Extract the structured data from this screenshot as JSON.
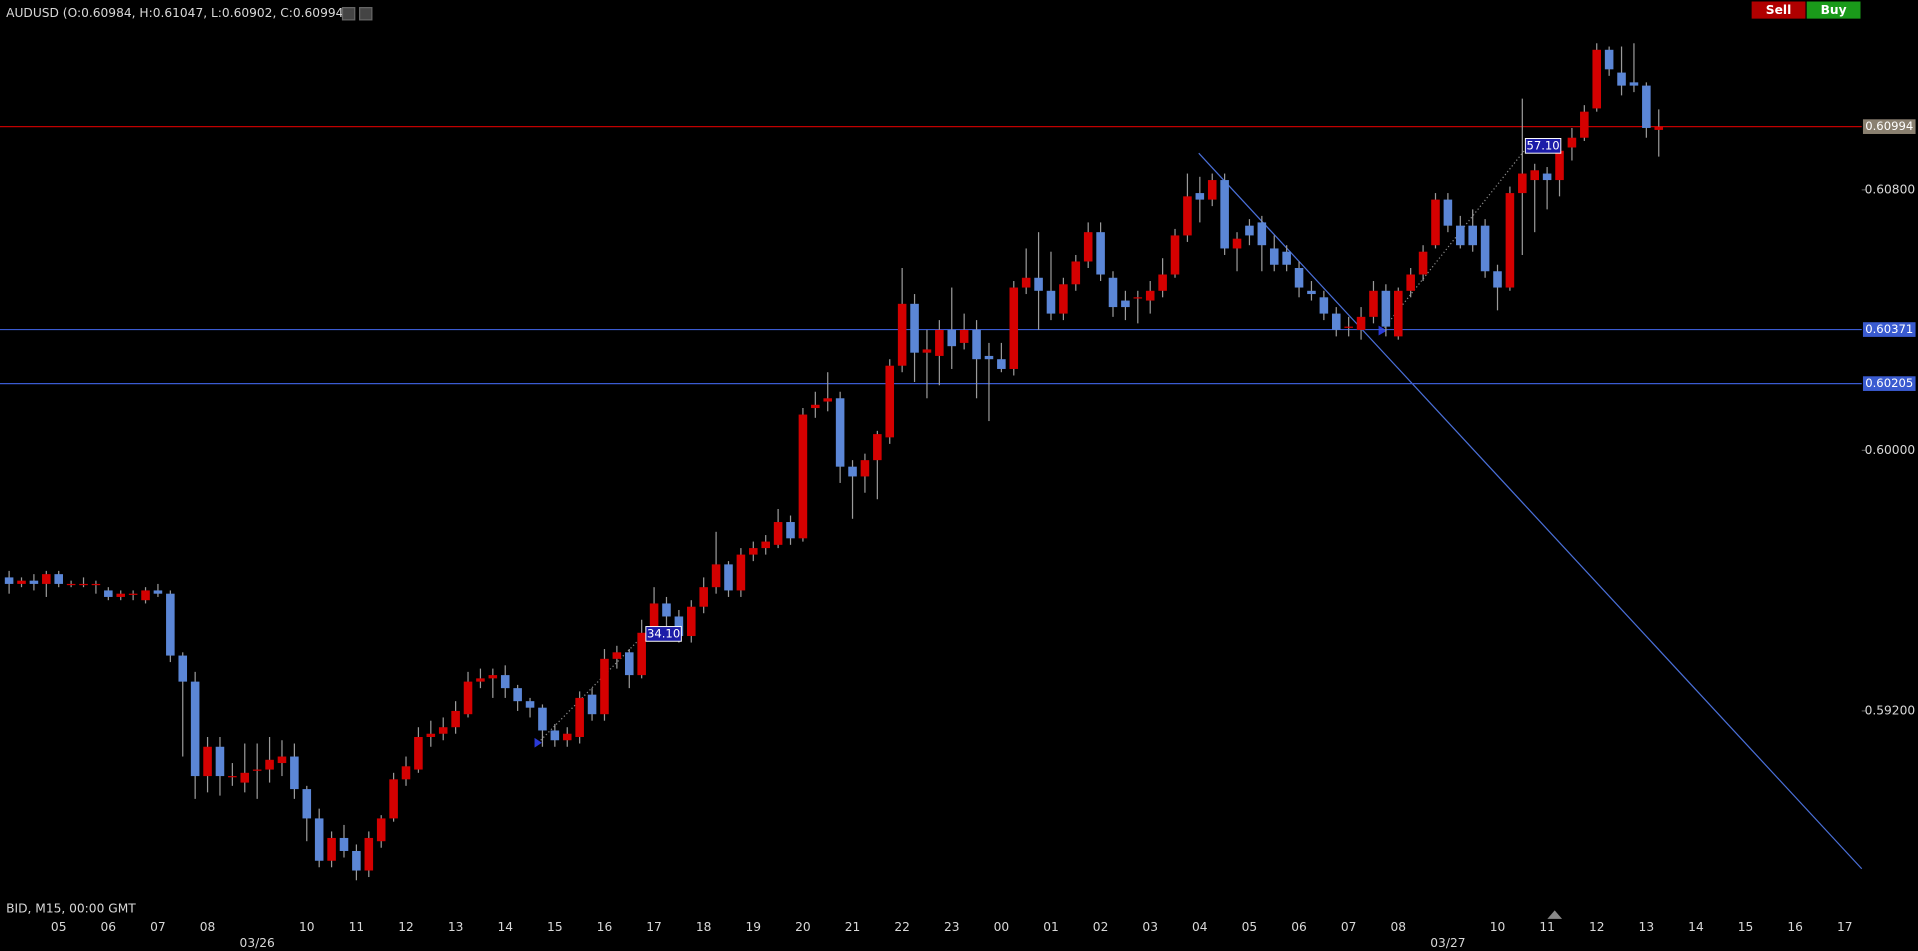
{
  "chart_data": {
    "type": "candlestick",
    "header": "AUDUSD (O:0.60984, H:0.61047, L:0.60902, C:0.60994)",
    "footer_label": "BID, M15, 00:00 GMT",
    "buttons": {
      "sell": "Sell",
      "buy": "Buy"
    },
    "up_color": "#d40000",
    "down_color": "#5b86d6",
    "ylim": [
      0.58614,
      0.61382
    ],
    "yticks": [
      {
        "value": 0.608,
        "label": "0.60800"
      },
      {
        "value": 0.6,
        "label": "0.60000"
      },
      {
        "value": 0.592,
        "label": "0.59200"
      }
    ],
    "price_lines": [
      {
        "value": 0.60994,
        "color": "#c00000"
      },
      {
        "value": 0.60371,
        "color": "#3a5bd0"
      },
      {
        "value": 0.60205,
        "color": "#3a5bd0"
      }
    ],
    "annotations": [
      {
        "label": "34.10"
      },
      {
        "label": "57.10"
      }
    ],
    "xtick_labels": [
      "05",
      "06",
      "07",
      "08",
      null,
      "10",
      "11",
      "12",
      "13",
      "14",
      "15",
      "16",
      "17",
      "18",
      "19",
      "20",
      "21",
      "22",
      "23",
      "00",
      "01",
      "02",
      "03",
      "04",
      "05",
      "06",
      "07",
      "08",
      null,
      "10",
      "11",
      "12",
      "13",
      "14",
      "15",
      "16",
      "17"
    ],
    "date_labels": [
      null,
      null,
      null,
      null,
      "03/26",
      null,
      null,
      null,
      null,
      null,
      null,
      null,
      null,
      null,
      null,
      null,
      null,
      null,
      null,
      null,
      null,
      null,
      null,
      null,
      null,
      null,
      null,
      null,
      "03/27",
      null,
      null,
      null,
      null,
      null,
      null,
      null,
      null
    ],
    "open": [
      0.5961,
      0.5959,
      0.596,
      0.5959,
      0.5962,
      0.5959,
      0.5959,
      0.5959,
      0.5957,
      0.5955,
      0.5956,
      0.5954,
      0.5957,
      0.5956,
      0.5937,
      0.5929,
      0.59,
      0.5909,
      0.59,
      0.5898,
      0.5902,
      0.5902,
      0.5904,
      0.5906,
      0.5896,
      0.5887,
      0.5874,
      0.5881,
      0.5877,
      0.5871,
      0.588,
      0.5887,
      0.5899,
      0.5902,
      0.5912,
      0.5913,
      0.5915,
      0.5919,
      0.5929,
      0.593,
      0.5931,
      0.5927,
      0.5923,
      0.5921,
      0.5914,
      0.5911,
      0.5912,
      0.5925,
      0.5919,
      0.5936,
      0.5938,
      0.5931,
      0.5944,
      0.5953,
      0.5949,
      0.5943,
      0.5952,
      0.5958,
      0.5965,
      0.5957,
      0.5968,
      0.597,
      0.5971,
      0.5978,
      0.5973,
      0.6013,
      0.6015,
      0.6016,
      0.5995,
      0.5992,
      0.5997,
      0.6004,
      0.6026,
      0.6045,
      0.603,
      0.6029,
      0.6037,
      0.6033,
      0.6037,
      0.6029,
      0.6028,
      0.6025,
      0.605,
      0.6053,
      0.6049,
      0.6042,
      0.6051,
      0.6058,
      0.6067,
      0.6053,
      0.6046,
      0.6047,
      0.6046,
      0.6049,
      0.6054,
      0.6066,
      0.6079,
      0.6077,
      0.6083,
      0.6062,
      0.6069,
      0.607,
      0.6062,
      0.6061,
      0.6056,
      0.6049,
      0.6047,
      0.6042,
      0.6038,
      0.6037,
      0.6041,
      0.6049,
      0.6035,
      0.6049,
      0.6054,
      0.6063,
      0.6077,
      0.6069,
      0.6069,
      0.6069,
      0.6055,
      0.605,
      0.6079,
      0.6083,
      0.6085,
      0.6083,
      0.6093,
      0.6096,
      0.6105,
      0.6123,
      0.6116,
      0.6113,
      0.6112,
      0.60984
    ],
    "high": [
      0.5963,
      0.5961,
      0.5962,
      0.5963,
      0.5963,
      0.596,
      0.5961,
      0.596,
      0.5958,
      0.5957,
      0.5957,
      0.5958,
      0.5959,
      0.5957,
      0.5938,
      0.5932,
      0.5912,
      0.5912,
      0.5904,
      0.591,
      0.591,
      0.5912,
      0.5911,
      0.591,
      0.5897,
      0.589,
      0.5883,
      0.5885,
      0.5879,
      0.5883,
      0.5888,
      0.5901,
      0.5906,
      0.5915,
      0.5917,
      0.5918,
      0.5923,
      0.5932,
      0.5933,
      0.5933,
      0.5934,
      0.5928,
      0.5924,
      0.5922,
      0.5916,
      0.5915,
      0.5926,
      0.5927,
      0.5939,
      0.594,
      0.5939,
      0.5948,
      0.5958,
      0.5955,
      0.5951,
      0.5954,
      0.5961,
      0.5975,
      0.5966,
      0.597,
      0.5972,
      0.5974,
      0.5982,
      0.598,
      0.6013,
      0.6018,
      0.6024,
      0.6018,
      0.5997,
      0.5999,
      0.6006,
      0.6028,
      0.6056,
      0.6048,
      0.6037,
      0.604,
      0.605,
      0.6042,
      0.604,
      0.6033,
      0.6033,
      0.6052,
      0.6062,
      0.6067,
      0.6061,
      0.6053,
      0.606,
      0.607,
      0.607,
      0.6055,
      0.6049,
      0.6049,
      0.6052,
      0.6059,
      0.6068,
      0.6085,
      0.6084,
      0.6085,
      0.6085,
      0.6067,
      0.6071,
      0.6072,
      0.6066,
      0.6063,
      0.6058,
      0.6052,
      0.6049,
      0.6044,
      0.6041,
      0.6044,
      0.6052,
      0.6051,
      0.605,
      0.6056,
      0.6063,
      0.6079,
      0.6079,
      0.6072,
      0.6074,
      0.6071,
      0.6057,
      0.6081,
      0.6108,
      0.6088,
      0.6087,
      0.6094,
      0.6099,
      0.6106,
      0.6125,
      0.6124,
      0.6124,
      0.6125,
      0.6113,
      0.61047
    ],
    "low": [
      0.5956,
      0.5958,
      0.5957,
      0.5955,
      0.5958,
      0.5958,
      0.5958,
      0.5956,
      0.5954,
      0.5954,
      0.5954,
      0.5953,
      0.5955,
      0.5935,
      0.5906,
      0.5893,
      0.5895,
      0.5894,
      0.5897,
      0.5895,
      0.5893,
      0.5898,
      0.59,
      0.5893,
      0.588,
      0.5872,
      0.5872,
      0.5875,
      0.5868,
      0.5869,
      0.5878,
      0.5886,
      0.5897,
      0.5901,
      0.5909,
      0.5911,
      0.5913,
      0.5918,
      0.5927,
      0.5924,
      0.5924,
      0.592,
      0.5918,
      0.5909,
      0.5909,
      0.5909,
      0.591,
      0.5917,
      0.5917,
      0.5933,
      0.5927,
      0.593,
      0.5942,
      0.5946,
      0.5941,
      0.5941,
      0.595,
      0.5956,
      0.5955,
      0.5955,
      0.5966,
      0.5968,
      0.597,
      0.5971,
      0.5972,
      0.601,
      0.6012,
      0.599,
      0.5979,
      0.5987,
      0.5985,
      0.6002,
      0.6024,
      0.6021,
      0.6016,
      0.602,
      0.6025,
      0.6031,
      0.6016,
      0.6009,
      0.6024,
      0.6023,
      0.6048,
      0.6037,
      0.604,
      0.604,
      0.6049,
      0.6056,
      0.6052,
      0.6041,
      0.604,
      0.6039,
      0.6042,
      0.6047,
      0.6053,
      0.6064,
      0.607,
      0.6075,
      0.606,
      0.6055,
      0.6063,
      0.6055,
      0.6055,
      0.6055,
      0.6047,
      0.6046,
      0.604,
      0.6035,
      0.6035,
      0.6034,
      0.6039,
      0.6035,
      0.6034,
      0.6047,
      0.6052,
      0.6062,
      0.6067,
      0.6062,
      0.6061,
      0.6053,
      0.6043,
      0.6049,
      0.606,
      0.6067,
      0.6074,
      0.6078,
      0.6089,
      0.6095,
      0.6104,
      0.6115,
      0.6109,
      0.611,
      0.6096,
      0.60902
    ],
    "close": [
      0.5959,
      0.596,
      0.5959,
      0.5962,
      0.5959,
      0.5959,
      0.5959,
      0.5959,
      0.5955,
      0.5956,
      0.5956,
      0.5957,
      0.5956,
      0.5937,
      0.5929,
      0.59,
      0.5909,
      0.59,
      0.59,
      0.5901,
      0.5902,
      0.5905,
      0.5906,
      0.5896,
      0.5887,
      0.5874,
      0.5881,
      0.5877,
      0.5871,
      0.5881,
      0.5887,
      0.5899,
      0.5903,
      0.5912,
      0.5913,
      0.5915,
      0.592,
      0.5929,
      0.593,
      0.5931,
      0.5927,
      0.5923,
      0.5921,
      0.5914,
      0.5911,
      0.5913,
      0.5924,
      0.5919,
      0.5936,
      0.5938,
      0.5931,
      0.5944,
      0.5953,
      0.5949,
      0.5943,
      0.5952,
      0.5958,
      0.5965,
      0.5957,
      0.5968,
      0.597,
      0.5972,
      0.5978,
      0.5973,
      0.6011,
      0.6014,
      0.6016,
      0.5995,
      0.5992,
      0.5997,
      0.6005,
      0.6026,
      0.6045,
      0.603,
      0.6031,
      0.6037,
      0.6032,
      0.6037,
      0.6028,
      0.6028,
      0.6025,
      0.605,
      0.6053,
      0.6049,
      0.6042,
      0.6051,
      0.6058,
      0.6067,
      0.6054,
      0.6044,
      0.6044,
      0.6047,
      0.6049,
      0.6054,
      0.6066,
      0.6078,
      0.6077,
      0.6083,
      0.6062,
      0.6065,
      0.6066,
      0.6063,
      0.6057,
      0.6057,
      0.605,
      0.6048,
      0.6042,
      0.6037,
      0.6038,
      0.6041,
      0.6049,
      0.6038,
      0.6049,
      0.6054,
      0.6061,
      0.6077,
      0.6069,
      0.6063,
      0.6063,
      0.6055,
      0.605,
      0.6079,
      0.6085,
      0.6086,
      0.6083,
      0.6092,
      0.6096,
      0.6104,
      0.6123,
      0.6117,
      0.6112,
      0.6112,
      0.6099,
      0.60994
    ]
  }
}
